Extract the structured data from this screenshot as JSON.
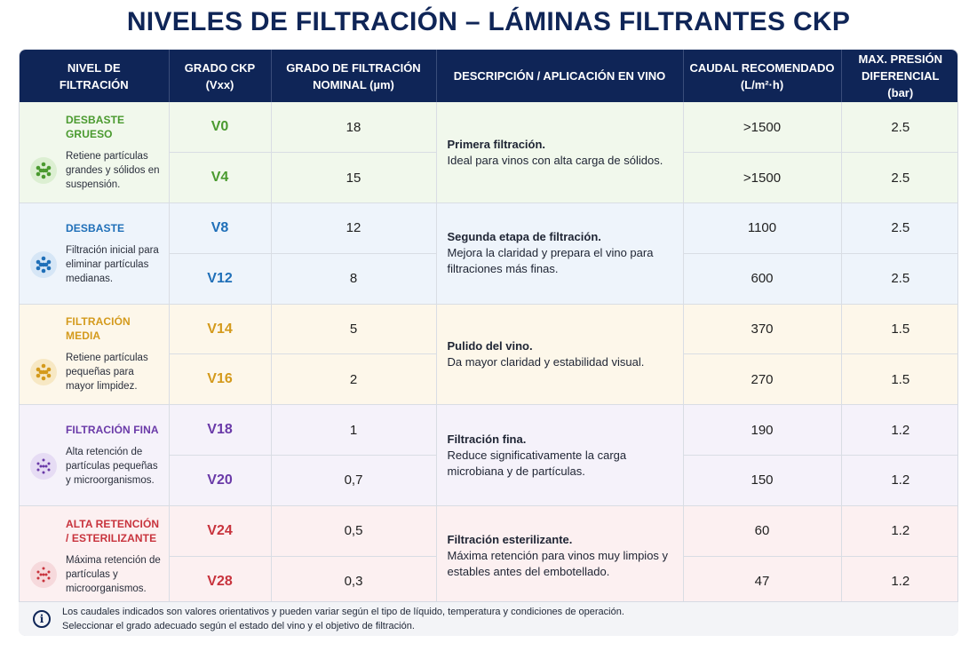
{
  "title": "NIVELES DE FILTRACIÓN – LÁMINAS FILTRANTES CKP",
  "headers": {
    "level": "NIVEL DE\nFILTRACIÓN",
    "grade": "GRADO CKP\n(Vxx)",
    "nominal": "GRADO DE FILTRACIÓN\nNOMINAL (µm)",
    "description": "DESCRIPCIÓN / APLICACIÓN EN VINO",
    "flow": "CAUDAL RECOMENDADO\n(L/m²·h)",
    "pressure": "MAX. PRESIÓN\nDIFERENCIAL\n(bar)"
  },
  "groups": [
    {
      "name": "DESBASTE GRUESO",
      "level_desc": "Retiene partículas grandes y sólidos en suspensión.",
      "icon": "particles-icon",
      "color": "#4a9a2f",
      "desc_title": "Primera filtración.",
      "desc_body": "Ideal para vinos con alta carga de sólidos.",
      "rows": [
        {
          "grade": "V0",
          "nominal": "18",
          "flow": ">1500",
          "pressure": "2.5"
        },
        {
          "grade": "V4",
          "nominal": "15",
          "flow": ">1500",
          "pressure": "2.5"
        }
      ]
    },
    {
      "name": "DESBASTE",
      "level_desc": "Filtración inicial para eliminar partículas medianas.",
      "icon": "particles-icon",
      "color": "#1f6fb8",
      "desc_title": "Segunda etapa de filtración.",
      "desc_body": "Mejora la claridad y prepara el vino para filtraciones más finas.",
      "rows": [
        {
          "grade": "V8",
          "nominal": "12",
          "flow": "1100",
          "pressure": "2.5"
        },
        {
          "grade": "V12",
          "nominal": "8",
          "flow": "600",
          "pressure": "2.5"
        }
      ]
    },
    {
      "name": "FILTRACIÓN MEDIA",
      "level_desc": "Retiene partículas pequeñas para mayor limpidez.",
      "icon": "particles-icon",
      "color": "#d49a1c",
      "desc_title": "Pulido del vino.",
      "desc_body": "Da mayor claridad y estabilidad visual.",
      "rows": [
        {
          "grade": "V14",
          "nominal": "5",
          "flow": "370",
          "pressure": "1.5"
        },
        {
          "grade": "V16",
          "nominal": "2",
          "flow": "270",
          "pressure": "1.5"
        }
      ]
    },
    {
      "name": "FILTRACIÓN FINA",
      "level_desc": "Alta retención de partículas pequeñas y microorganismos.",
      "icon": "particles-icon",
      "color": "#6a3aa8",
      "desc_title": "Filtración fina.",
      "desc_body": "Reduce significativamente la carga microbiana y de partículas.",
      "rows": [
        {
          "grade": "V18",
          "nominal": "1",
          "flow": "190",
          "pressure": "1.2"
        },
        {
          "grade": "V20",
          "nominal": "0,7",
          "flow": "150",
          "pressure": "1.2"
        }
      ]
    },
    {
      "name": "ALTA RETENCIÓN / ESTERILIZANTE",
      "level_desc": "Máxima retención de partículas y microorganismos.",
      "icon": "particles-icon",
      "color": "#c8333d",
      "desc_title": "Filtración esterilizante.",
      "desc_body": "Máxima retención para vinos muy limpios y estables antes del embotellado.",
      "rows": [
        {
          "grade": "V24",
          "nominal": "0,5",
          "flow": "60",
          "pressure": "1.2"
        },
        {
          "grade": "V28",
          "nominal": "0,3",
          "flow": "47",
          "pressure": "1.2"
        }
      ]
    }
  ],
  "footer": {
    "icon": "info-icon",
    "line1": "Los caudales indicados son valores orientativos y pueden variar según el tipo de líquido, temperatura y condiciones de operación.",
    "line2": "Seleccionar el grado adecuado según el estado del vino y el objetivo de filtración."
  }
}
